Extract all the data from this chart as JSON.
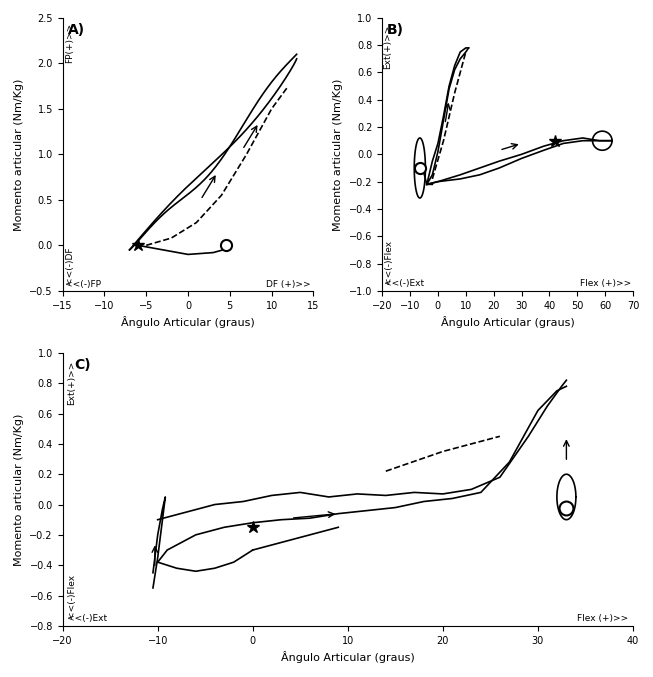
{
  "fig_width": 6.53,
  "fig_height": 6.77,
  "background_color": "#ffffff",
  "panel_A": {
    "xlabel": "Ângulo Articular (graus)",
    "ylabel": "Momento articular (Nm/Kg)",
    "xlim": [
      -15,
      15
    ],
    "ylim": [
      -0.5,
      2.5
    ],
    "xticks": [
      -15,
      -10,
      -5,
      0,
      5,
      10,
      15
    ],
    "yticks": [
      -0.5,
      0,
      0.5,
      1,
      1.5,
      2,
      2.5
    ],
    "xlabel_extra_left": "<<(-)FP",
    "xlabel_extra_right": "DF (+)>>",
    "ylabel_extra_bottom": "<<(-)DF",
    "ylabel_extra_top": "FP(+)>>",
    "label": "A)"
  },
  "panel_B": {
    "xlabel": "Ângulo Articular (graus)",
    "ylabel": "Momento articular (Nm/Kg)",
    "xlim": [
      -20,
      70
    ],
    "ylim": [
      -1,
      1
    ],
    "xticks": [
      -20,
      -10,
      0,
      10,
      20,
      30,
      40,
      50,
      60,
      70
    ],
    "yticks": [
      -1,
      -0.8,
      -0.6,
      -0.4,
      -0.2,
      0,
      0.2,
      0.4,
      0.6,
      0.8,
      1
    ],
    "xlabel_extra_left": "<<(-)Ext",
    "xlabel_extra_right": "Flex (+)>>",
    "ylabel_extra_bottom": "<<(-)Flex",
    "ylabel_extra_top": "Ext(+)>>",
    "label": "B)"
  },
  "panel_C": {
    "xlabel": "Ângulo Articular (graus)",
    "ylabel": "Momento articular (Nm/Kg)",
    "xlim": [
      -20,
      40
    ],
    "ylim": [
      -0.8,
      1
    ],
    "xticks": [
      -20,
      -10,
      0,
      10,
      20,
      30,
      40
    ],
    "yticks": [
      -0.8,
      -0.6,
      -0.4,
      -0.2,
      0,
      0.2,
      0.4,
      0.6,
      0.8,
      1
    ],
    "xlabel_extra_left": "<<(-)Ext",
    "xlabel_extra_right": "Flex (+)>>",
    "ylabel_extra_bottom": "<<(-)Flex",
    "ylabel_extra_top": "Ext(+)>>",
    "label": "C)"
  },
  "line_color": "#000000",
  "line_width": 1.2
}
